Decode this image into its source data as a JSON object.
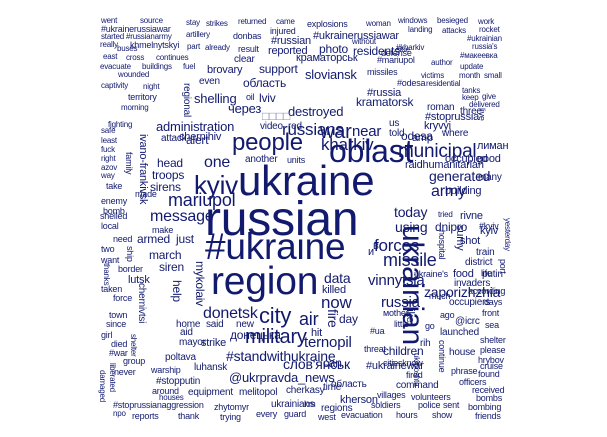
{
  "style": {
    "word_color": "#121a6e",
    "background": "#ffffff"
  },
  "words": {
    "russian": "russian",
    "ukraine": "ukraine",
    "hashtag_ukraine": "#ukraine",
    "region": "region",
    "oblast": "oblast",
    "people": "people",
    "ukrainian_v": "ukrainian",
    "kyiv": "kyiv",
    "war": "war",
    "kharkiv": "kharkiv",
    "city": "city",
    "air": "air",
    "military": "military",
    "municipal": "municipal",
    "donetsk": "donetsk",
    "missile": "missile",
    "forces": "forces",
    "russians": "russians",
    "mariupol": "mariupol",
    "message": "message",
    "stand": "#standwithukraine",
    "ukrpravda": "@ukrpravda_news",
    "slovyansk": "слов'янськ",
    "ternopil": "ternopil",
    "now": "now",
    "russia_mid": "russia",
    "today": "today",
    "generated": "generated",
    "army": "army",
    "zaporizhzhia": "zaporizhzhia",
    "vinnytsia": "vinnytsia",
    "using": "using",
    "dnipro": "dnipro",
    "children": "children",
    "destroyed": "destroyed",
    "sloviansk": "sloviansk",
    "kramatorsk": "kramatorsk",
    "administration": "administration",
    "odesa": "odesa",
    "chernihiv": "chernihiv",
    "shelling": "shelling",
    "data": "data",
    "killed": "killed",
    "fire": "fire",
    "day": "day",
    "can": "can",
    "one": "one",
    "occupied": "occupied",
    "through": "через",
    "oblast_cyr": "область",
    "ukraine_cyr": "україни",
    "donetsk_cyr": "донецька",
    "kramatorsk_cyr": "краматорськ",
    "ukrainewar": "#ukrainewar",
    "hashtag_russia": "#russia",
    "stoprussia": "#stoprussia",
    "sirens": "sirens",
    "troops": "troops",
    "siren": "siren",
    "march": "march",
    "armed": "armed",
    "just": "just",
    "lutsk": "lutsk",
    "help": "help",
    "ivano": "ivano-frankivsk",
    "head": "head",
    "alert": "alert",
    "attack": "attack",
    "mykolaiv": "mykolaiv",
    "cherkasy": "cherkasy",
    "melitopol": "melitopol",
    "poltava": "poltava",
    "luhansk": "luhansk",
    "strike": "strike",
    "mayor": "mayor",
    "home": "home",
    "said": "said",
    "new": "new",
    "aid": "aid",
    "zhytomyr": "zhytomyr",
    "kherson": "kherson",
    "regions": "regions",
    "time": "time",
    "evacuation": "evacuation",
    "soldiers": "soldiers",
    "hours": "hours",
    "show": "show",
    "ukrainians": "ukrainians",
    "every": "every",
    "guard": "guard",
    "west": "west",
    "km": "km",
    "equipment": "equipment",
    "stopputin": "#stopputin",
    "warship": "warship",
    "stoprussianaggression": "#stoprussianaggression",
    "reports": "reports",
    "thank": "thank",
    "trying": "trying",
    "villages": "villages",
    "volunteers": "volunteers",
    "police": "police",
    "sent": "sent",
    "friends": "friends",
    "bombing": "bombing",
    "officers": "officers",
    "found": "found",
    "received": "received",
    "bombs": "bombs",
    "command": "command",
    "fired": "fired",
    "citiesknow": "citiesknow",
    "rih": "rih",
    "continue": "continue",
    "ukraines": "ukraine's",
    "food": "food",
    "putin": "putin",
    "occupiers": "occupiers",
    "invaders": "invaders",
    "rivne": "rivne",
    "district": "district",
    "train": "train",
    "shot": "shot",
    "kyiv2": "kyiv",
    "hospital": "hospital",
    "tried": "tried",
    "bomb": "bomb",
    "life": "life",
    "port": "port",
    "many": "many",
    "good": "good",
    "building": "building",
    "raid": "raidhumanitarian",
    "amp": "amp",
    "near": "near",
    "us": "us",
    "told": "told",
    "kryvyi": "kryvyi",
    "roman": "roman",
    "where": "where",
    "three": "three",
    "live": "live",
    "lyman": "лиман",
    "sumy": "sumy",
    "photo": "photo",
    "residents": "residents",
    "reported": "reported",
    "russian_hash": "#russian",
    "ukrainerussiawar": "#ukrainerussiawar",
    "explosions": "explosions",
    "woman": "woman",
    "windows": "windows",
    "besieged": "besieged",
    "work": "work",
    "rocket": "rocket",
    "ukrainian_hash": "#ukrainian",
    "russias": "russia's",
    "makeevka": "#макеевка",
    "went": "went",
    "source": "source",
    "stay": "stay",
    "strikes": "strikes",
    "returned": "returned",
    "came": "came",
    "ukrainerussiawar2": "#ukrainerussiawar",
    "started": "started",
    "russianarmy": "#russianarmy",
    "artillery": "artillery",
    "donbas": "donbas",
    "injured": "injured",
    "without": "without",
    "landing": "landing",
    "attacks": "attacks",
    "really": "really",
    "khmelnytskyi": "khmelnytskyi",
    "part": "part",
    "already": "already",
    "result": "result",
    "side": "side",
    "defense": "defense",
    "kharkiv_hash": "#kharkiv",
    "east": "east",
    "cross": "cross",
    "continues": "continues",
    "buses": "buses",
    "evacuate": "evacuate",
    "buildings": "buildings",
    "fuel": "fuel",
    "clear": "clear",
    "missiles": "missiles",
    "mariupol_hash": "#mariupol",
    "author": "author",
    "update": "update",
    "month": "month",
    "small": "small",
    "wounded": "wounded",
    "brovary": "brovary",
    "support": "support",
    "even": "even",
    "victims": "victims",
    "captivity": "captivity",
    "night": "night",
    "territory": "territory",
    "regional": "regional",
    "odesa_hash": "#odesa",
    "residential": "residential",
    "tanks": "tanks",
    "keep": "keep",
    "delivered": "delivered",
    "morning": "morning",
    "lviv": "lviv",
    "video": "video",
    "red": "red",
    "oil": "oil",
    "give": "give",
    "fighting": "fighting",
    "safe": "safe",
    "least": "least",
    "right": "right",
    "fuck": "fuck",
    "azov": "azov",
    "way": "way",
    "take": "take",
    "made": "made",
    "family": "family",
    "shelled": "shelled",
    "enemy": "enemy",
    "local": "local",
    "make": "make",
    "need": "need",
    "two": "two",
    "want": "want",
    "border": "border",
    "thanks": "thanks",
    "force": "force",
    "town": "town",
    "since": "since",
    "girl": "girl",
    "died": "died",
    "war_hash": "#war",
    "group": "group",
    "never": "never",
    "liberated": "liberated",
    "damaged": "damaged",
    "npo": "npo",
    "taken": "taken",
    "ship": "ship",
    "chernivtsi": "chernivtsi",
    "shelter": "shelter",
    "kyiv_hash": "#kyiv",
    "hit": "hit",
    "threat": "threat",
    "ua": "#ua",
    "like": "like",
    "icrc": "@icrc",
    "ago": "ago",
    "launched": "launched",
    "house": "house",
    "please": "please",
    "shelter2": "shelter",
    "hrybov": "hrybov",
    "phrase": "phrase",
    "cruise": "cruise",
    "much": "much",
    "front": "front",
    "sea": "sea",
    "days": "days",
    "according": "according",
    "units": "units",
    "another": "another",
    "around": "around",
    "houses": "houses",
    "oblast_cyr2": "область",
    "ukrposhta": "ukrposhta",
    "yesterday": "yesterday",
    "glyph_box": "□□□□",
    "small_cyr": "в",
    "small_i": "и",
    "mother": "мother",
    "little": "little",
    "go": "go"
  }
}
